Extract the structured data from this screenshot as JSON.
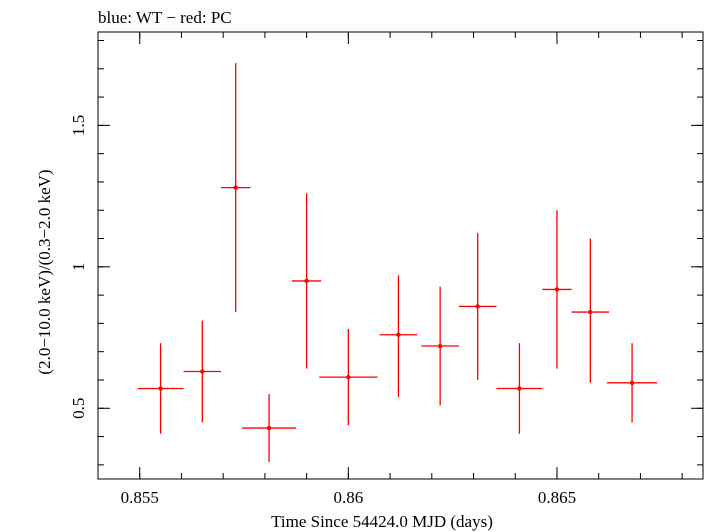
{
  "chart_data": {
    "type": "scatter",
    "title": "blue: WT − red: PC",
    "xlabel": "Time Since 54424.0 MJD (days)",
    "ylabel": "(2.0−10.0 keV)/(0.3−2.0 keV)",
    "xlim": [
      0.854,
      0.8685
    ],
    "ylim": [
      0.25,
      1.83
    ],
    "x_ticks": [
      {
        "value": 0.855,
        "label": "0.855"
      },
      {
        "value": 0.86,
        "label": "0.86"
      },
      {
        "value": 0.865,
        "label": "0.865"
      }
    ],
    "y_ticks": [
      {
        "value": 0.5,
        "label": "0.5"
      },
      {
        "value": 1.0,
        "label": "1"
      },
      {
        "value": 1.5,
        "label": "1.5"
      }
    ],
    "grid": false,
    "series": [
      {
        "color": "#ff0000",
        "points": [
          {
            "x": 0.8555,
            "y": 0.57,
            "xerr": 0.00055,
            "ylow": 0.41,
            "yhigh": 0.73
          },
          {
            "x": 0.8565,
            "y": 0.63,
            "xerr": 0.00045,
            "ylow": 0.45,
            "yhigh": 0.81
          },
          {
            "x": 0.8573,
            "y": 1.28,
            "xerr": 0.00035,
            "ylow": 0.84,
            "yhigh": 1.72
          },
          {
            "x": 0.8581,
            "y": 0.43,
            "xerr": 0.00065,
            "ylow": 0.31,
            "yhigh": 0.55
          },
          {
            "x": 0.859,
            "y": 0.95,
            "xerr": 0.00035,
            "ylow": 0.64,
            "yhigh": 1.26
          },
          {
            "x": 0.86,
            "y": 0.61,
            "xerr": 0.0007,
            "ylow": 0.44,
            "yhigh": 0.78
          },
          {
            "x": 0.8612,
            "y": 0.76,
            "xerr": 0.00045,
            "ylow": 0.54,
            "yhigh": 0.97
          },
          {
            "x": 0.8622,
            "y": 0.72,
            "xerr": 0.00045,
            "ylow": 0.51,
            "yhigh": 0.93
          },
          {
            "x": 0.8631,
            "y": 0.86,
            "xerr": 0.00045,
            "ylow": 0.6,
            "yhigh": 1.12
          },
          {
            "x": 0.8641,
            "y": 0.57,
            "xerr": 0.00055,
            "ylow": 0.41,
            "yhigh": 0.73
          },
          {
            "x": 0.865,
            "y": 0.92,
            "xerr": 0.00035,
            "ylow": 0.64,
            "yhigh": 1.2
          },
          {
            "x": 0.8658,
            "y": 0.84,
            "xerr": 0.00045,
            "ylow": 0.59,
            "yhigh": 1.1
          },
          {
            "x": 0.8668,
            "y": 0.59,
            "xerr": 0.0006,
            "ylow": 0.45,
            "yhigh": 0.73
          }
        ]
      }
    ]
  }
}
